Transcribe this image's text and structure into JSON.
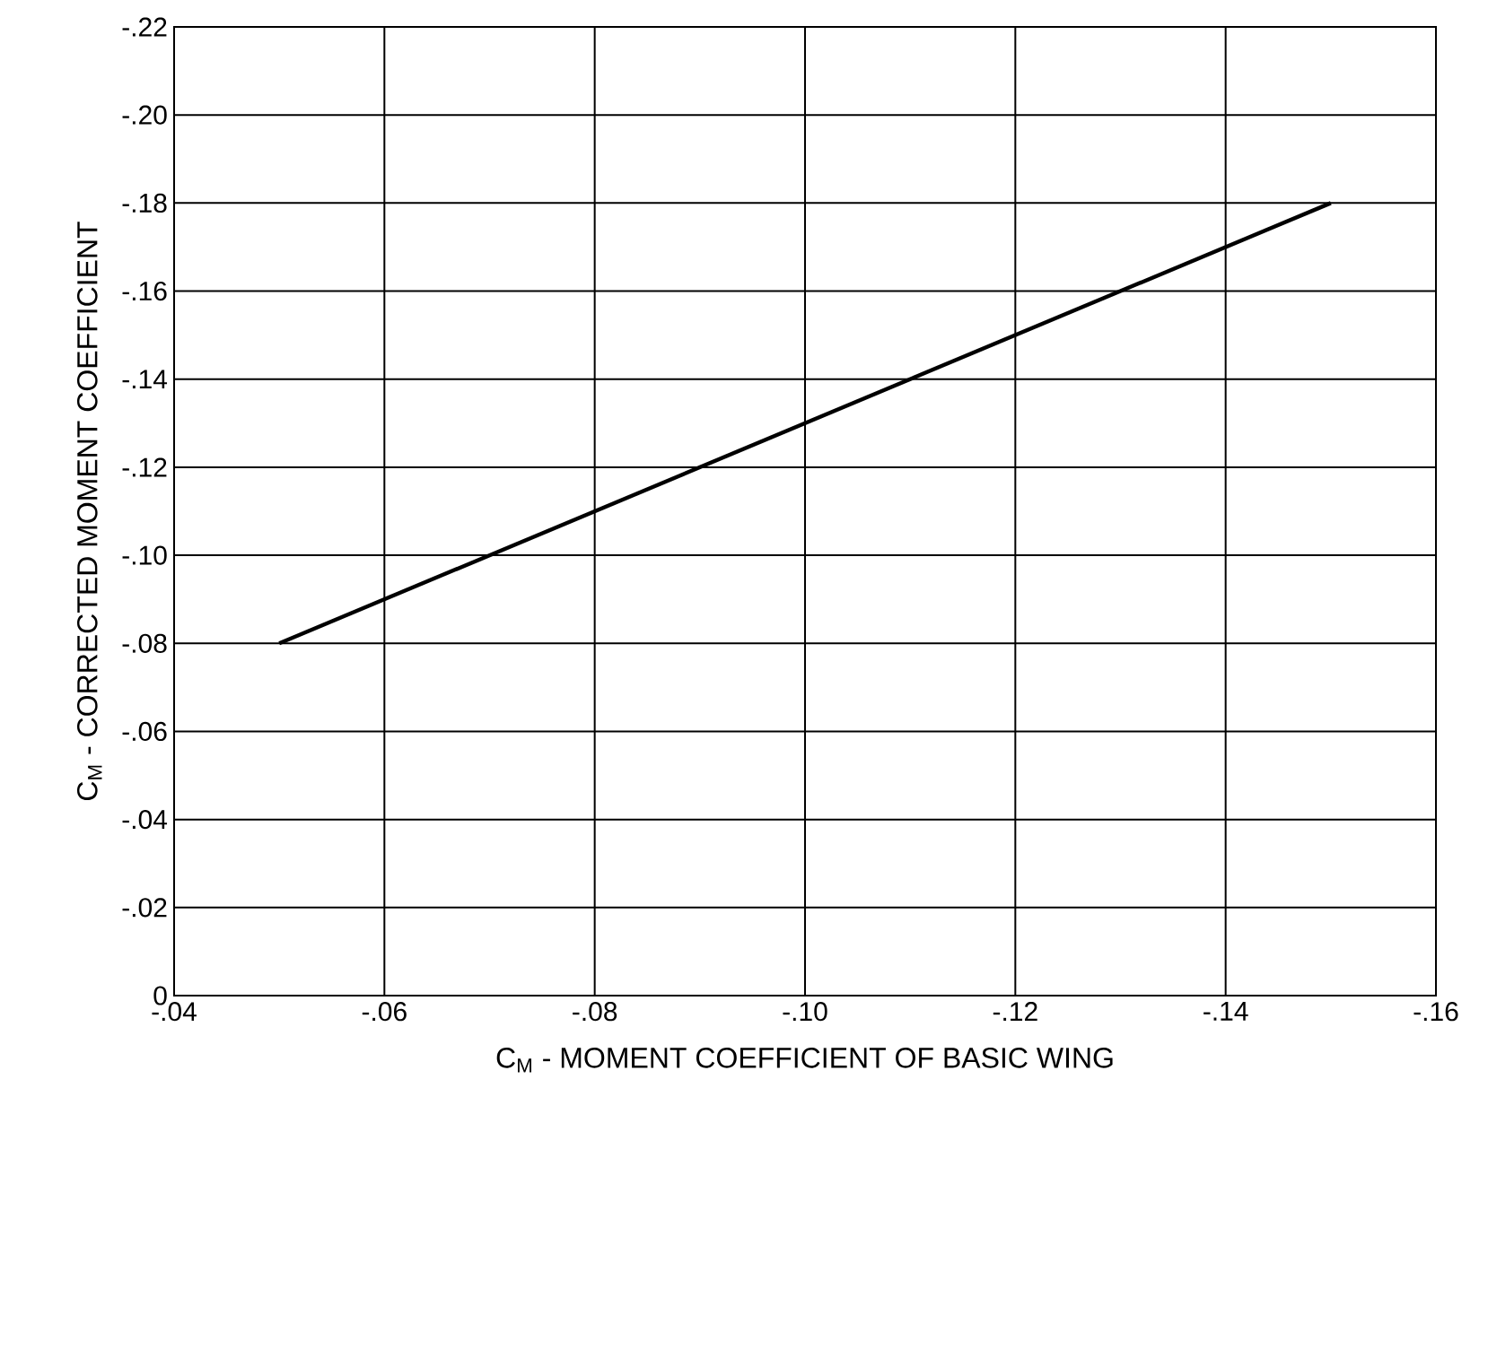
{
  "chart_data": {
    "type": "line",
    "xlabel": "C$_{M}$ - MOMENT COEFFICIENT OF BASIC WING",
    "ylabel": "C$_{M}$ - CORRECTED MOMENT COEFFICIENT",
    "x": [
      -0.05,
      -0.15
    ],
    "series": [
      {
        "color": "#000000",
        "values": [
          -0.08,
          -0.18
        ]
      }
    ],
    "xlim": [
      -0.04,
      -0.16
    ],
    "ylim": [
      0,
      -0.22
    ],
    "xticks": [
      {
        "value": -0.04,
        "label": "-.04"
      },
      {
        "value": -0.06,
        "label": "-.06"
      },
      {
        "value": -0.08,
        "label": "-.08"
      },
      {
        "value": -0.1,
        "label": "-.10"
      },
      {
        "value": -0.12,
        "label": "-.12"
      },
      {
        "value": -0.14,
        "label": "-.14"
      },
      {
        "value": -0.16,
        "label": "-.16"
      }
    ],
    "yticks": [
      0,
      {
        "value": -0.02,
        "label": "-.02"
      },
      {
        "value": -0.04,
        "label": "-.04"
      },
      {
        "value": -0.06,
        "label": "-.06"
      },
      {
        "value": -0.08,
        "label": "-.08"
      },
      {
        "value": -0.1,
        "label": "-.10"
      },
      {
        "value": -0.12,
        "label": "-.12"
      },
      {
        "value": -0.14,
        "label": "-.14"
      },
      {
        "value": -0.16,
        "label": "-.16"
      },
      {
        "value": -0.18,
        "label": "-.18"
      },
      {
        "value": -0.2,
        "label": "-.20"
      },
      {
        "value": -0.22,
        "label": "-.22"
      }
    ],
    "grid": true,
    "marker": "none",
    "line_style": "solid"
  }
}
